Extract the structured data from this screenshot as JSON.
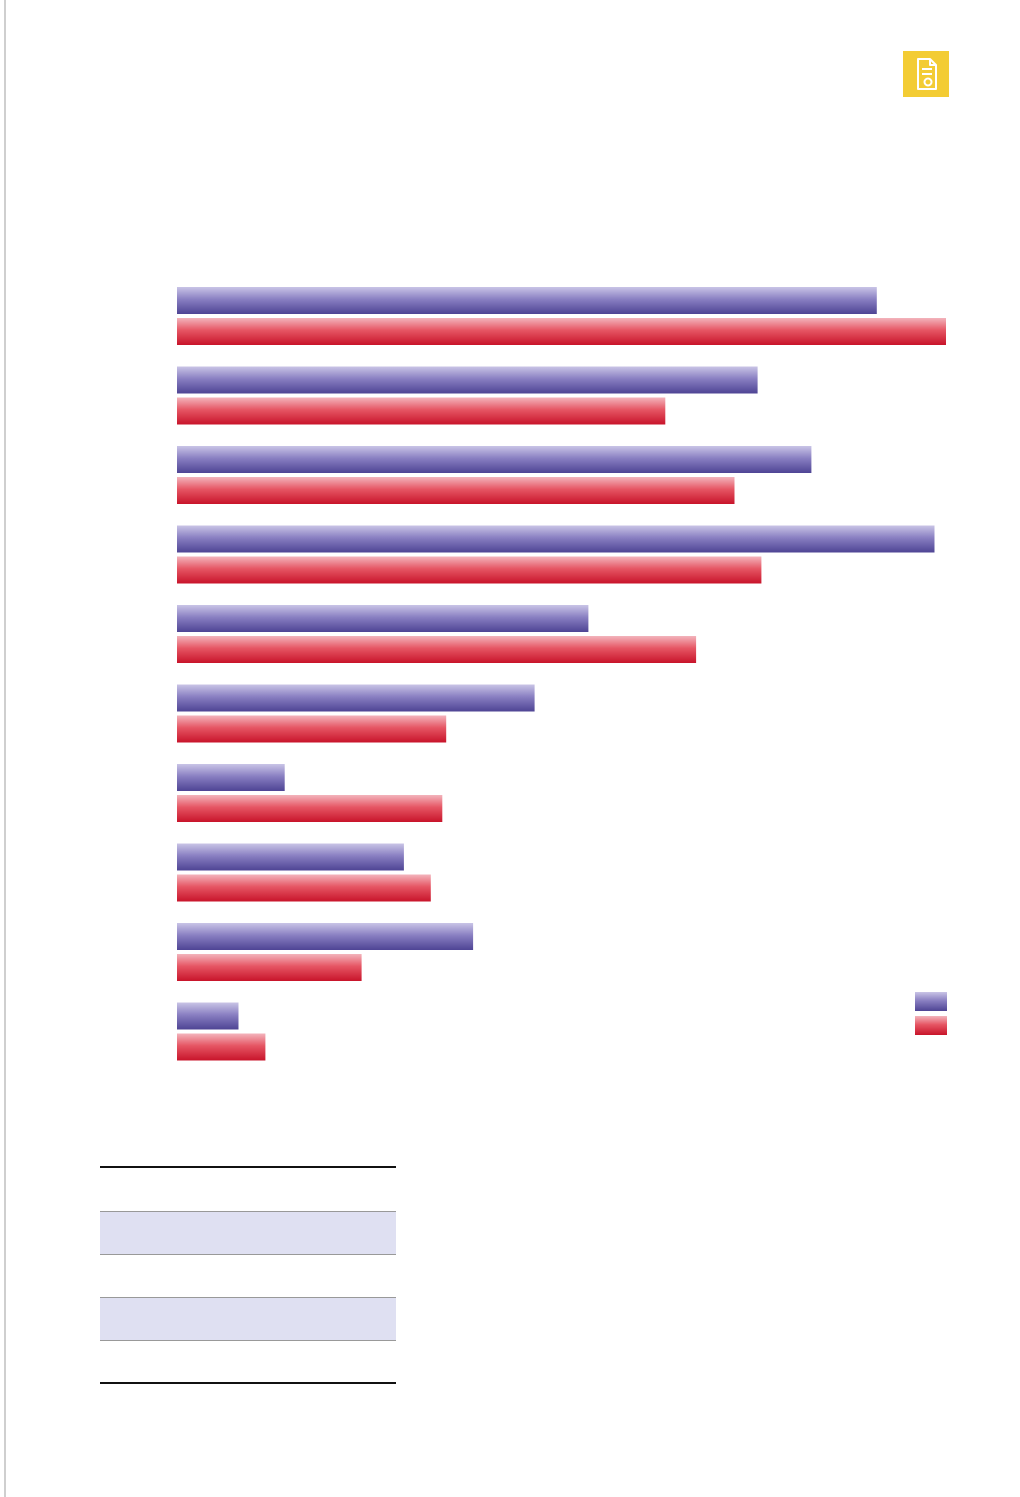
{
  "badge": {
    "icon": "document-icon",
    "color": "#f3cc34"
  },
  "chart_data": {
    "type": "bar",
    "orientation": "horizontal",
    "categories": [
      "",
      "",
      "",
      "",
      "",
      "",
      "",
      "",
      "",
      ""
    ],
    "series": [
      {
        "values": [
          91,
          75.5,
          82.5,
          98.5,
          53.5,
          46.5,
          14,
          29.5,
          38.5,
          8
        ],
        "color": "#5a4f9e"
      },
      {
        "values": [
          100,
          63.5,
          72.5,
          76,
          67.5,
          35,
          34.5,
          33,
          24,
          11.5
        ],
        "color": "#d9253a"
      }
    ],
    "title": "",
    "xlabel": "",
    "ylabel": "",
    "xlim": [
      0,
      100
    ],
    "grid": false,
    "legend_position": "bottom-right"
  },
  "table": {
    "headers": [
      "",
      "",
      ""
    ],
    "rows": [
      [
        "",
        "",
        ""
      ],
      [
        "",
        "",
        ""
      ],
      [
        "",
        "",
        ""
      ],
      [
        "",
        "",
        ""
      ]
    ]
  }
}
